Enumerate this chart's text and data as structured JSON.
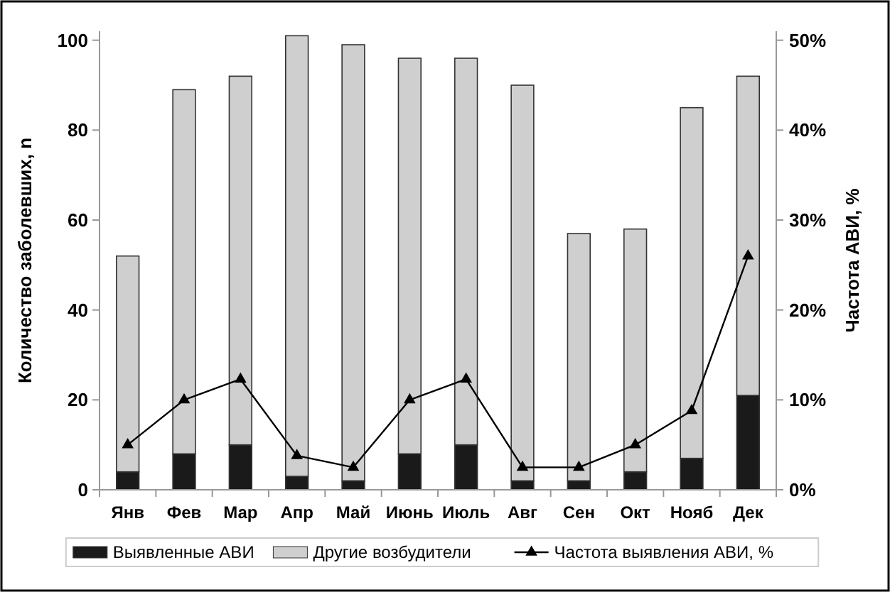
{
  "chart_data": {
    "type": "bar",
    "stacked": true,
    "ylabel": "Количество заболевших, n",
    "y2label": "Частота АВИ, %",
    "categories": [
      "Янв",
      "Фев",
      "Мар",
      "Апр",
      "Май",
      "Июнь",
      "Июль",
      "Авг",
      "Сен",
      "Окт",
      "Нояб",
      "Дек"
    ],
    "series": [
      {
        "name": "Выявленные АВИ",
        "color": "#1a1a1a",
        "values": [
          4,
          8,
          10,
          3,
          2,
          8,
          10,
          2,
          2,
          4,
          7,
          21
        ]
      },
      {
        "name": "Другие возбудители",
        "color": "#cfcfcf",
        "values": [
          48,
          81,
          82,
          98,
          97,
          88,
          86,
          88,
          55,
          54,
          78,
          71
        ]
      },
      {
        "name": "Частота выявления АВИ, %",
        "type": "line",
        "axis": "y2",
        "color": "#000000",
        "marker": "triangle",
        "values": [
          5,
          10,
          12.3,
          3.8,
          2.5,
          10,
          12.3,
          2.5,
          2.5,
          5,
          8.8,
          26
        ]
      }
    ],
    "ylim": [
      0,
      102
    ],
    "yticks": [
      0,
      20,
      40,
      60,
      80,
      100
    ],
    "y2lim": [
      0,
      51
    ],
    "y2ticks": [
      {
        "value": 0,
        "label": "0%"
      },
      {
        "value": 10,
        "label": "10%"
      },
      {
        "value": 20,
        "label": "20%"
      },
      {
        "value": 30,
        "label": "30%"
      },
      {
        "value": 40,
        "label": "40%"
      },
      {
        "value": 50,
        "label": "50%"
      }
    ],
    "grid": false,
    "legend": "bottom"
  }
}
